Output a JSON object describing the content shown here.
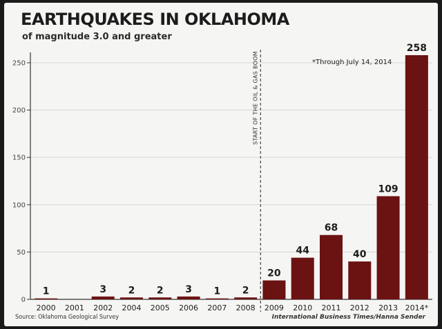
{
  "header": {
    "title": "EARTHQUAKES IN OKLAHOMA",
    "subtitle": "of magnitude 3.0 and greater"
  },
  "footer": {
    "source": "Source: Oklahoma Geological Survey",
    "credit": "International Business Times/Hanna Sender"
  },
  "colors": {
    "bar": "#6b1212",
    "axis": "#333333",
    "grid": "#d6d6d6",
    "background": "#f5f5f3"
  },
  "chart_data": {
    "type": "bar",
    "title": "EARTHQUAKES IN OKLAHOMA",
    "subtitle": "of magnitude 3.0 and greater",
    "xlabel": "",
    "ylabel": "",
    "categories": [
      "2000",
      "2001",
      "2002",
      "2004",
      "2005",
      "2006",
      "2007",
      "2008",
      "2009",
      "2010",
      "2011",
      "2012",
      "2013",
      "2014*"
    ],
    "values": [
      1,
      null,
      3,
      2,
      2,
      3,
      1,
      2,
      20,
      44,
      68,
      40,
      109,
      258
    ],
    "data_labels": [
      "1",
      "",
      "3",
      "2",
      "2",
      "3",
      "1",
      "2",
      "20",
      "44",
      "68",
      "40",
      "109",
      "258"
    ],
    "ylim": [
      0,
      258
    ],
    "yticks": [
      0,
      50,
      100,
      150,
      200,
      250
    ],
    "grid": true,
    "annotations": {
      "note": "*Through July 14, 2014",
      "boom_label": "START OF THE OIL & GAS BOOM",
      "boom_after_category": "2008"
    }
  }
}
